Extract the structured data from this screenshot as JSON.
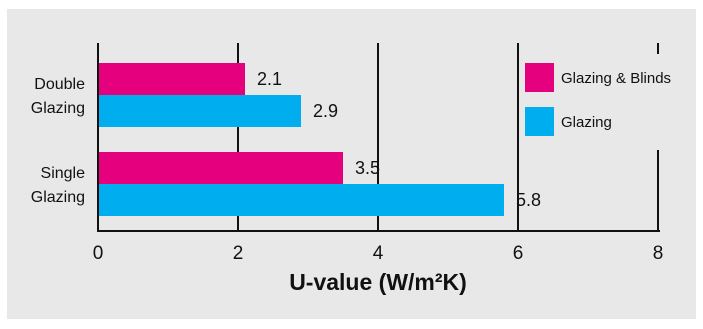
{
  "chart_data": {
    "type": "bar",
    "orientation": "horizontal",
    "categories": [
      {
        "line1": "Double",
        "line2": "Glazing"
      },
      {
        "line1": "Single",
        "line2": "Glazing"
      }
    ],
    "series": [
      {
        "name": "Glazing & Blinds",
        "color": "#e5007e",
        "values": [
          2.1,
          3.5
        ],
        "labels": [
          "2.1",
          "3.5"
        ]
      },
      {
        "name": "Glazing",
        "color": "#00adef",
        "values": [
          2.9,
          5.8
        ],
        "labels": [
          "2.9",
          "5.8"
        ]
      }
    ],
    "xlabel": "U-value (W/m²K)",
    "xlim": [
      0,
      8
    ],
    "xticks": [
      "0",
      "2",
      "4",
      "6",
      "8"
    ],
    "grid": "vertical lines at each tick",
    "legend_position": "right",
    "legend": [
      "Glazing & Blinds",
      "Glazing"
    ]
  }
}
